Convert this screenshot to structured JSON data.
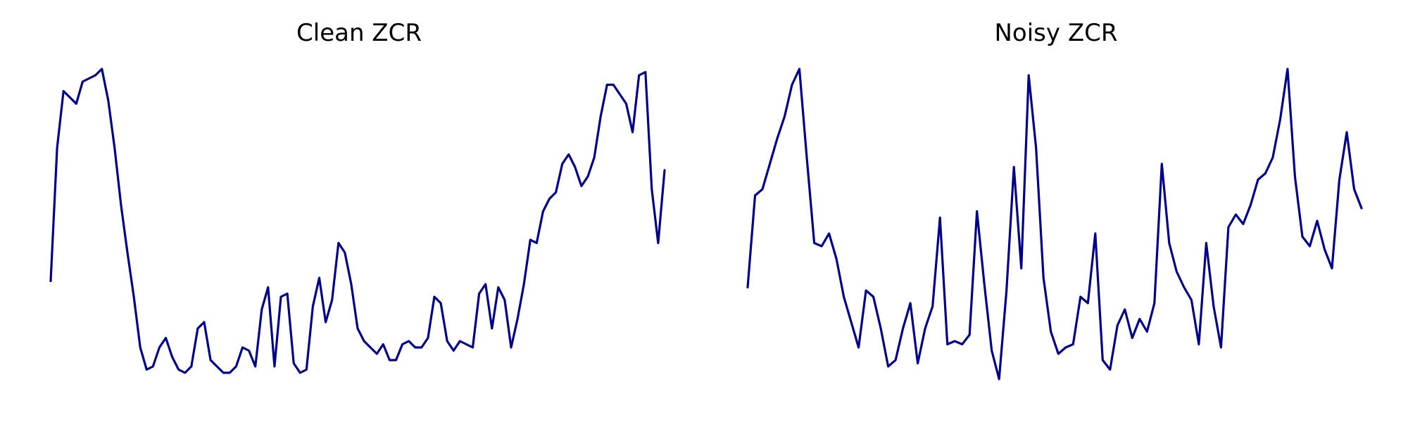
{
  "chart_data": [
    {
      "type": "line",
      "title": "Clean ZCR",
      "xlabel": "",
      "ylabel": "",
      "axes_visible": false,
      "grid": false,
      "line_color": "#00008B",
      "x_range": [
        0,
        160
      ],
      "y_range": [
        0,
        1
      ],
      "values": [
        0.33,
        0.75,
        0.93,
        0.91,
        0.89,
        0.96,
        0.97,
        0.98,
        1.0,
        0.9,
        0.75,
        0.57,
        0.42,
        0.28,
        0.12,
        0.05,
        0.06,
        0.12,
        0.15,
        0.09,
        0.05,
        0.04,
        0.06,
        0.18,
        0.2,
        0.08,
        0.06,
        0.04,
        0.04,
        0.06,
        0.12,
        0.11,
        0.06,
        0.24,
        0.31,
        0.06,
        0.28,
        0.29,
        0.07,
        0.04,
        0.05,
        0.25,
        0.34,
        0.2,
        0.27,
        0.45,
        0.42,
        0.32,
        0.18,
        0.14,
        0.12,
        0.1,
        0.13,
        0.08,
        0.08,
        0.13,
        0.14,
        0.12,
        0.12,
        0.15,
        0.28,
        0.26,
        0.14,
        0.11,
        0.14,
        0.13,
        0.12,
        0.29,
        0.32,
        0.18,
        0.31,
        0.27,
        0.12,
        0.21,
        0.32,
        0.46,
        0.45,
        0.55,
        0.59,
        0.61,
        0.7,
        0.73,
        0.69,
        0.63,
        0.66,
        0.72,
        0.85,
        0.95,
        0.95,
        0.92,
        0.89,
        0.8,
        0.98,
        0.99,
        0.62,
        0.45,
        0.68
      ]
    },
    {
      "type": "line",
      "title": "Noisy ZCR",
      "xlabel": "",
      "ylabel": "",
      "axes_visible": false,
      "grid": false,
      "line_color": "#00008B",
      "x_range": [
        0,
        160
      ],
      "y_range": [
        0,
        1
      ],
      "values": [
        0.31,
        0.6,
        0.62,
        0.7,
        0.78,
        0.85,
        0.95,
        1.0,
        0.72,
        0.45,
        0.44,
        0.48,
        0.4,
        0.28,
        0.2,
        0.12,
        0.3,
        0.28,
        0.18,
        0.06,
        0.08,
        0.18,
        0.26,
        0.07,
        0.18,
        0.25,
        0.53,
        0.13,
        0.14,
        0.13,
        0.16,
        0.55,
        0.32,
        0.11,
        0.02,
        0.3,
        0.69,
        0.37,
        0.98,
        0.75,
        0.34,
        0.17,
        0.1,
        0.12,
        0.13,
        0.28,
        0.26,
        0.48,
        0.08,
        0.05,
        0.19,
        0.24,
        0.15,
        0.21,
        0.17,
        0.26,
        0.7,
        0.45,
        0.36,
        0.31,
        0.27,
        0.13,
        0.45,
        0.25,
        0.12,
        0.5,
        0.54,
        0.51,
        0.57,
        0.65,
        0.67,
        0.72,
        0.84,
        1.0,
        0.66,
        0.47,
        0.44,
        0.52,
        0.43,
        0.37,
        0.65,
        0.8,
        0.62,
        0.56
      ]
    }
  ]
}
